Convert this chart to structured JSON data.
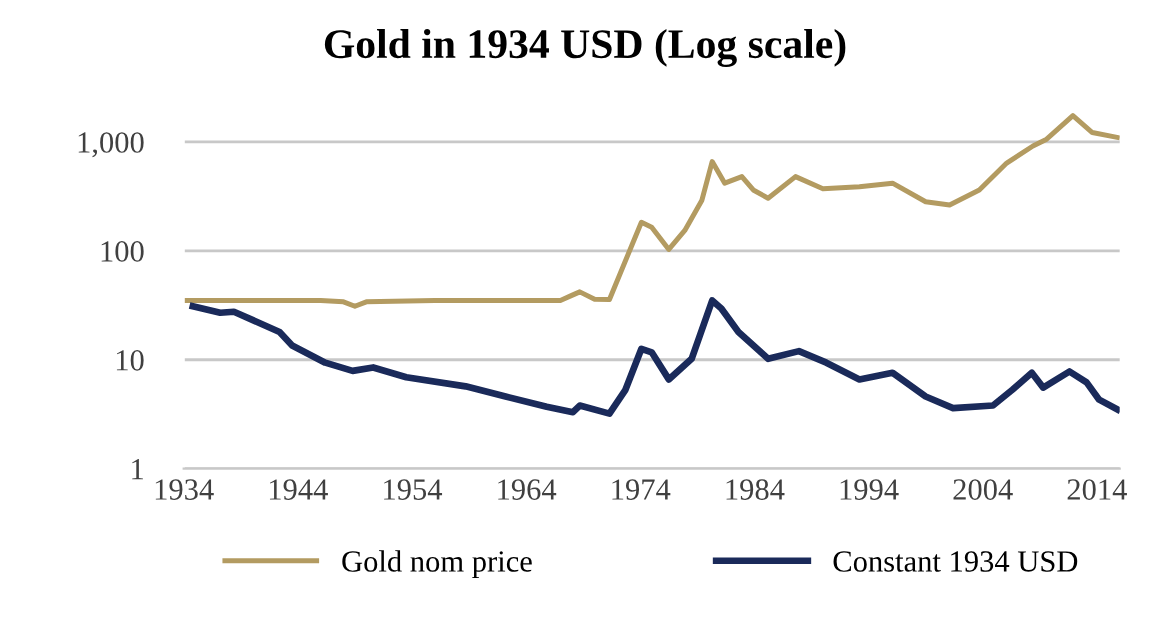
{
  "chart_data": {
    "type": "line",
    "title": "Gold in 1934 USD (Log scale)",
    "log": "y",
    "grid": "y",
    "legend": "bottom",
    "xlim": [
      1934,
      2016
    ],
    "xticks": [
      1934,
      1944,
      1954,
      1964,
      1974,
      1984,
      1994,
      2004,
      2014
    ],
    "ylim": [
      1,
      2000
    ],
    "yticks": [
      1,
      10,
      100,
      {
        "value": 1000,
        "label": "1,000"
      }
    ],
    "series": [
      {
        "name": "Gold nom price",
        "color": "#b39b61",
        "x": [
          1934,
          1940,
          1946,
          1948,
          1949,
          1950,
          1956,
          1962,
          1967,
          1968,
          1968.7,
          1970,
          1971.3,
          1973.3,
          1974.1,
          1975,
          1976.5,
          1977.9,
          1979.4,
          1980.3,
          1981.4,
          1982.9,
          1983.9,
          1985.2,
          1987.6,
          1990,
          1993.2,
          1996.1,
          1999,
          2001.1,
          2003.7,
          2006.1,
          2008.4,
          2009.6,
          2011.9,
          2013.6,
          2015.8
        ],
        "values": [
          35,
          35,
          35,
          34,
          31,
          34,
          35,
          35,
          35,
          39,
          42,
          36,
          35.7,
          115,
          183,
          165,
          103,
          154,
          292,
          660,
          418,
          480,
          362,
          304,
          480,
          372,
          387,
          418,
          282,
          264,
          362,
          640,
          917,
          1060,
          1740,
          1220,
          1100
        ]
      },
      {
        "name": "Constant 1934 USD",
        "color": "#1a2a5a",
        "x": [
          1934.8,
          1937.2,
          1938.4,
          1942.4,
          1943.5,
          1946.4,
          1948.8,
          1950.6,
          1953.5,
          1958.7,
          1962.2,
          1965.8,
          1968.1,
          1968.7,
          1971.3,
          1972.7,
          1974.1,
          1975,
          1976.5,
          1978.5,
          1980.3,
          1981.1,
          1982.6,
          1985.2,
          1987.9,
          1990.3,
          1993.2,
          1996.1,
          1999,
          2001.4,
          2004.9,
          2006.6,
          2008.3,
          2009.3,
          2011.6,
          2013.1,
          2014.2,
          2015.8
        ],
        "values": [
          31,
          27,
          27.6,
          18,
          13.5,
          9.4,
          7.9,
          8.5,
          6.9,
          5.7,
          4.6,
          3.7,
          3.3,
          3.8,
          3.2,
          5.3,
          12.6,
          11.7,
          6.6,
          10.2,
          35,
          29.6,
          18,
          10.2,
          12,
          9.4,
          6.6,
          7.6,
          4.6,
          3.6,
          3.8,
          5.3,
          7.6,
          5.55,
          7.8,
          6.2,
          4.3,
          3.5
        ]
      }
    ]
  }
}
